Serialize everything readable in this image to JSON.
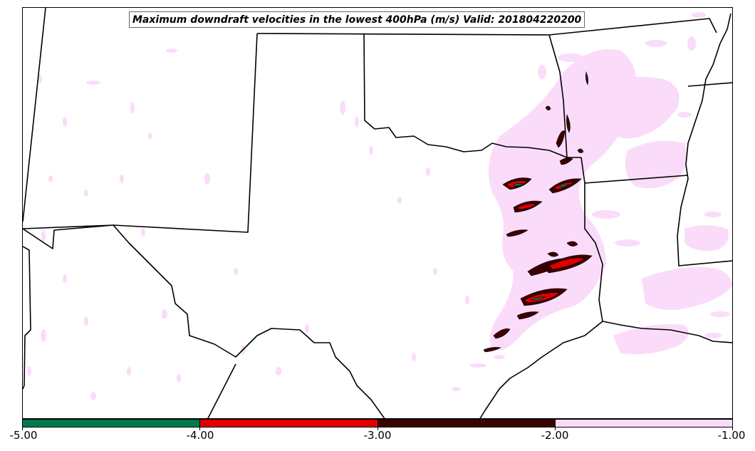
{
  "title": "Maximum downdraft velocities in the lowest 400hPa (m/s) Valid: 201804220200",
  "colorbar": {
    "ticks": [
      "-5.00",
      "-4.00",
      "-3.00",
      "-2.00",
      "-1.00"
    ],
    "segments": [
      {
        "range": [
          -5.0,
          -4.0
        ],
        "color": "#007a4d"
      },
      {
        "range": [
          -4.0,
          -3.0
        ],
        "color": "#e00000"
      },
      {
        "range": [
          -3.0,
          -2.0
        ],
        "color": "#3d0000"
      },
      {
        "range": [
          -2.0,
          -1.0
        ],
        "color": "#fadcfa"
      }
    ]
  },
  "colors": {
    "light_pink": "#fadcfa",
    "dark_red": "#3d0000",
    "red": "#e00000",
    "green": "#007a4d",
    "borders": "#000000"
  }
}
